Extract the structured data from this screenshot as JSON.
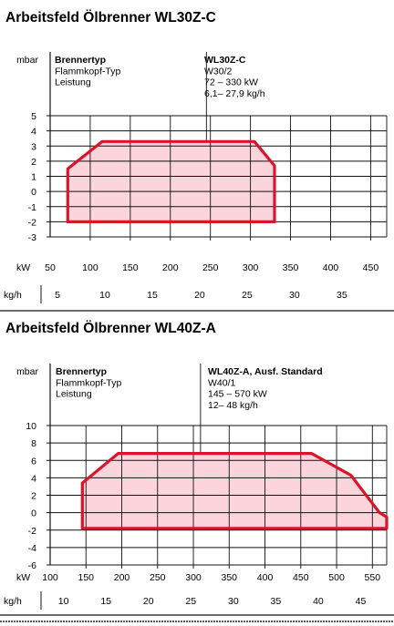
{
  "chart_data": [
    {
      "type": "area",
      "title": "Arbeitsfeld Ölbrenner WL30Z-C",
      "ylabel": "mbar",
      "xlabel": "kW",
      "x2label": "kg/h",
      "header_labels": [
        "Brennertyp",
        "Flammkopf-Typ",
        "Leistung"
      ],
      "header_values": [
        "WL30Z-C",
        "W30/2",
        "72 – 330 kW",
        "6,1– 27,9 kg/h"
      ],
      "xlim": [
        50,
        470
      ],
      "ylim": [
        -3,
        5
      ],
      "x_ticks": [
        50,
        100,
        150,
        200,
        250,
        300,
        350,
        400,
        450
      ],
      "y_ticks": [
        5,
        4,
        3,
        2,
        1,
        0,
        -1,
        -2,
        -3
      ],
      "x2_ticks": [
        5,
        10,
        15,
        20,
        25,
        30,
        35
      ],
      "x2_kw_per_unit": 11.83,
      "marker_kw": 245,
      "polygon": [
        [
          72,
          -2
        ],
        [
          72,
          1.5
        ],
        [
          115,
          3.3
        ],
        [
          305,
          3.3
        ],
        [
          330,
          1.7
        ],
        [
          330,
          -2
        ]
      ],
      "fill_color": "#fcd4dc",
      "line_color": "#d8152a"
    },
    {
      "type": "area",
      "title": "Arbeitsfeld Ölbrenner WL40Z-A",
      "ylabel": "mbar",
      "xlabel": "kW",
      "x2label": "kg/h",
      "header_labels": [
        "Brennertyp",
        "Flammkopf-Typ",
        "Leistung"
      ],
      "header_values": [
        "WL40Z-A, Ausf. Standard",
        "W40/1",
        "145 – 570 kW",
        "12– 48 kg/h"
      ],
      "xlim": [
        100,
        570
      ],
      "ylim": [
        -6,
        10
      ],
      "x_ticks": [
        100,
        150,
        200,
        250,
        300,
        350,
        400,
        450,
        500,
        550
      ],
      "y_ticks": [
        10,
        8,
        6,
        4,
        2,
        0,
        -2,
        -4,
        -6
      ],
      "x2_ticks": [
        10,
        15,
        20,
        25,
        30,
        35,
        40,
        45
      ],
      "x2_kw_per_unit": 11.86,
      "marker_kw": 310,
      "polygon": [
        [
          145,
          -1.8
        ],
        [
          145,
          3.4
        ],
        [
          195,
          6.8
        ],
        [
          465,
          6.8
        ],
        [
          520,
          4.3
        ],
        [
          560,
          0
        ],
        [
          570,
          -0.5
        ],
        [
          570,
          -1.8
        ]
      ],
      "fill_color": "#fcd4dc",
      "line_color": "#d8152a"
    }
  ]
}
